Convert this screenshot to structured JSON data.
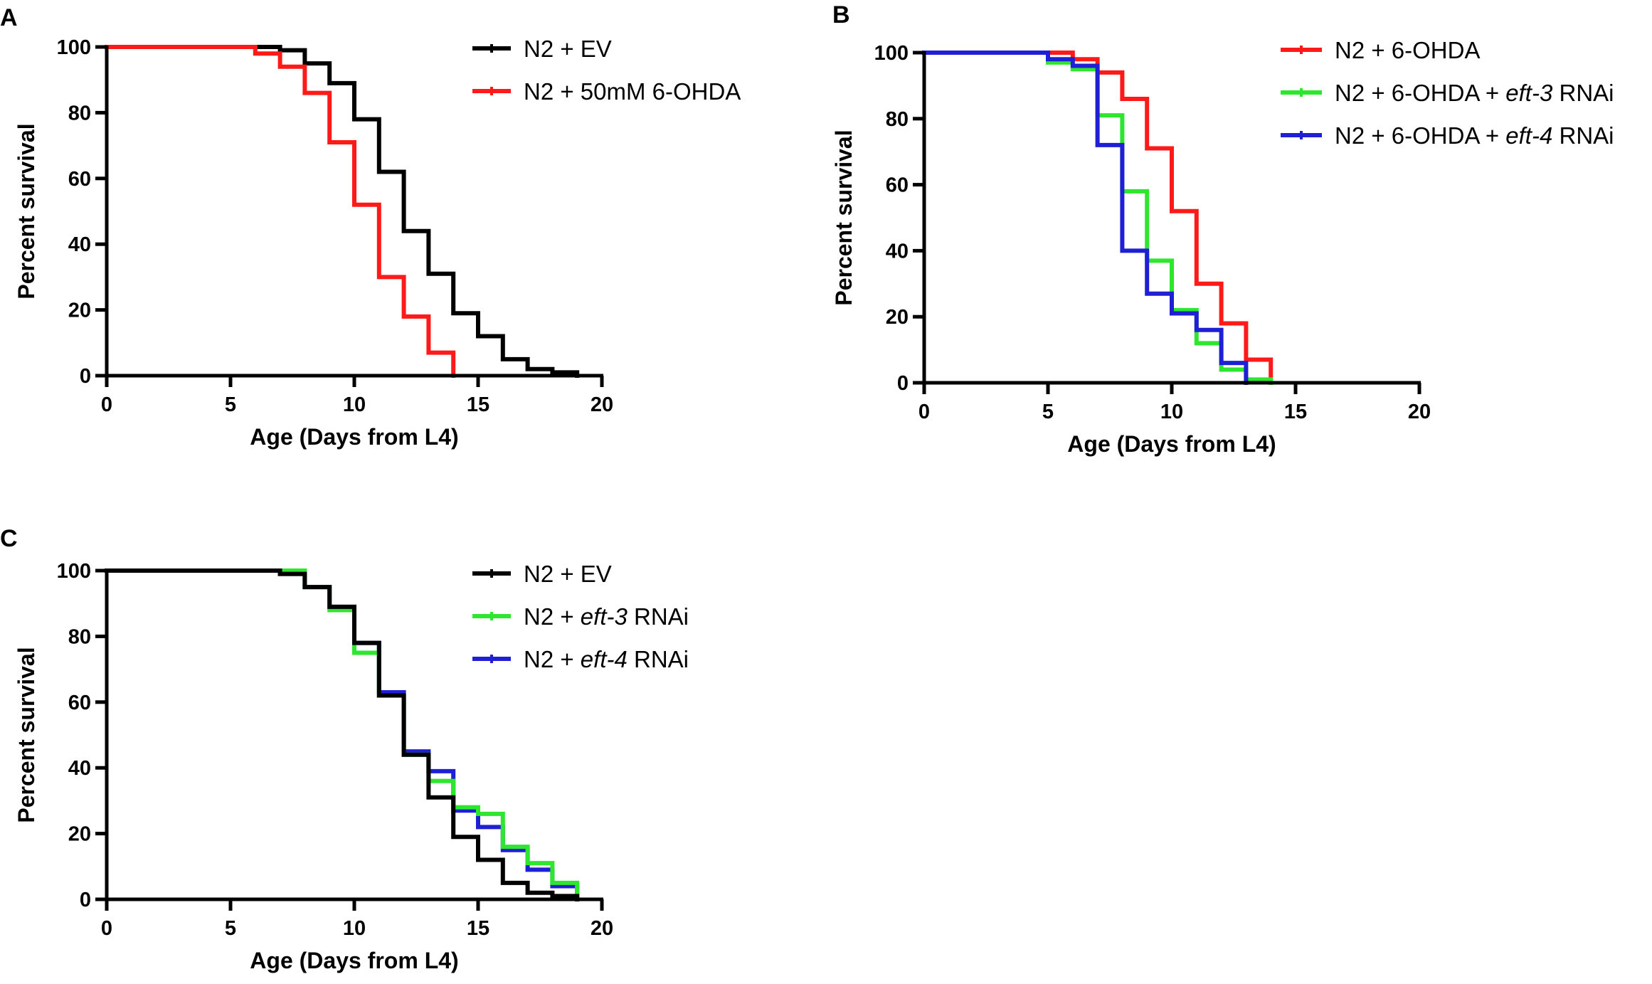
{
  "figure": {
    "background": "#ffffff"
  },
  "chart_data": [
    {
      "panel": "A",
      "type": "line",
      "step": true,
      "xlabel": "Age (Days from L4)",
      "ylabel": "Percent survival",
      "xlim": [
        0,
        20
      ],
      "ylim": [
        0,
        100
      ],
      "xticks": [
        0,
        5,
        10,
        15,
        20
      ],
      "yticks": [
        0,
        20,
        40,
        60,
        80,
        100
      ],
      "legend_position": "top-right",
      "series": [
        {
          "name": "N2 + EV",
          "legend_parts": [
            {
              "text": "N2 + EV",
              "italic": false
            }
          ],
          "color": "#000000",
          "x": [
            0,
            7,
            8,
            9,
            10,
            11,
            12,
            13,
            14,
            15,
            16,
            17,
            18,
            19
          ],
          "y": [
            100,
            99,
            95,
            89,
            78,
            62,
            44,
            31,
            19,
            12,
            5,
            2,
            1,
            0
          ]
        },
        {
          "name": "N2 + 50mM 6-OHDA",
          "legend_parts": [
            {
              "text": "N2 + 50mM 6-OHDA",
              "italic": false
            }
          ],
          "color": "#ff1a1a",
          "x": [
            0,
            6,
            7,
            8,
            9,
            10,
            11,
            12,
            13,
            14
          ],
          "y": [
            100,
            98,
            94,
            86,
            71,
            52,
            30,
            18,
            7,
            0
          ]
        }
      ]
    },
    {
      "panel": "B",
      "type": "line",
      "step": true,
      "xlabel": "Age (Days from L4)",
      "ylabel": "Percent survival",
      "xlim": [
        0,
        20
      ],
      "ylim": [
        0,
        100
      ],
      "xticks": [
        0,
        5,
        10,
        15,
        20
      ],
      "yticks": [
        0,
        20,
        40,
        60,
        80,
        100
      ],
      "legend_position": "top-right",
      "series": [
        {
          "name": "N2 + 6-OHDA",
          "legend_parts": [
            {
              "text": "N2 + 6-OHDA",
              "italic": false
            }
          ],
          "color": "#ff1a1a",
          "x": [
            0,
            6,
            7,
            8,
            9,
            10,
            11,
            12,
            13,
            14
          ],
          "y": [
            100,
            98,
            94,
            86,
            71,
            52,
            30,
            18,
            7,
            0
          ]
        },
        {
          "name": "N2 + 6-OHDA + eft-3 RNAi",
          "legend_parts": [
            {
              "text": "N2 + 6-OHDA + ",
              "italic": false
            },
            {
              "text": "eft-3",
              "italic": true
            },
            {
              "text": " RNAi",
              "italic": false
            }
          ],
          "color": "#2ee62e",
          "x": [
            0,
            5,
            6,
            7,
            8,
            9,
            10,
            11,
            12,
            13,
            14
          ],
          "y": [
            100,
            97,
            95,
            81,
            58,
            37,
            22,
            12,
            4,
            1,
            0
          ]
        },
        {
          "name": "N2 + 6-OHDA + eft-4 RNAi",
          "legend_parts": [
            {
              "text": "N2 + 6-OHDA + ",
              "italic": false
            },
            {
              "text": "eft-4",
              "italic": true
            },
            {
              "text": " RNAi",
              "italic": false
            }
          ],
          "color": "#1f1fd6",
          "x": [
            0,
            5,
            6,
            7,
            8,
            9,
            10,
            11,
            12,
            13
          ],
          "y": [
            100,
            98,
            96,
            72,
            40,
            27,
            21,
            16,
            6,
            0
          ]
        }
      ]
    },
    {
      "panel": "C",
      "type": "line",
      "step": true,
      "xlabel": "Age (Days from L4)",
      "ylabel": "Percent survival",
      "xlim": [
        0,
        20
      ],
      "ylim": [
        0,
        100
      ],
      "xticks": [
        0,
        5,
        10,
        15,
        20
      ],
      "yticks": [
        0,
        20,
        40,
        60,
        80,
        100
      ],
      "legend_position": "top-right",
      "series": [
        {
          "name": "N2 + eft-4 RNAi",
          "legend_parts": [
            {
              "text": "N2 + ",
              "italic": false
            },
            {
              "text": "eft-4",
              "italic": true
            },
            {
              "text": " RNAi",
              "italic": false
            }
          ],
          "color": "#1f1fd6",
          "legend_index": 2,
          "x": [
            0,
            7,
            8,
            9,
            10,
            11,
            12,
            13,
            14,
            15,
            16,
            17,
            18,
            19
          ],
          "y": [
            100,
            99,
            95,
            89,
            78,
            63,
            45,
            39,
            27,
            22,
            15,
            9,
            4,
            0
          ]
        },
        {
          "name": "N2 + eft-3 RNAi",
          "legend_parts": [
            {
              "text": "N2 + ",
              "italic": false
            },
            {
              "text": "eft-3",
              "italic": true
            },
            {
              "text": " RNAi",
              "italic": false
            }
          ],
          "color": "#2ee62e",
          "legend_index": 1,
          "x": [
            0,
            8,
            9,
            10,
            11,
            12,
            13,
            14,
            15,
            16,
            17,
            18,
            19
          ],
          "y": [
            100,
            95,
            88,
            75,
            62,
            44,
            36,
            28,
            26,
            16,
            11,
            5,
            0
          ]
        },
        {
          "name": "N2 + EV",
          "legend_parts": [
            {
              "text": "N2 + EV",
              "italic": false
            }
          ],
          "color": "#000000",
          "legend_index": 0,
          "x": [
            0,
            7,
            8,
            9,
            10,
            11,
            12,
            13,
            14,
            15,
            16,
            17,
            18,
            19
          ],
          "y": [
            100,
            99,
            95,
            89,
            78,
            62,
            44,
            31,
            19,
            12,
            5,
            2,
            1,
            0
          ]
        }
      ]
    }
  ]
}
